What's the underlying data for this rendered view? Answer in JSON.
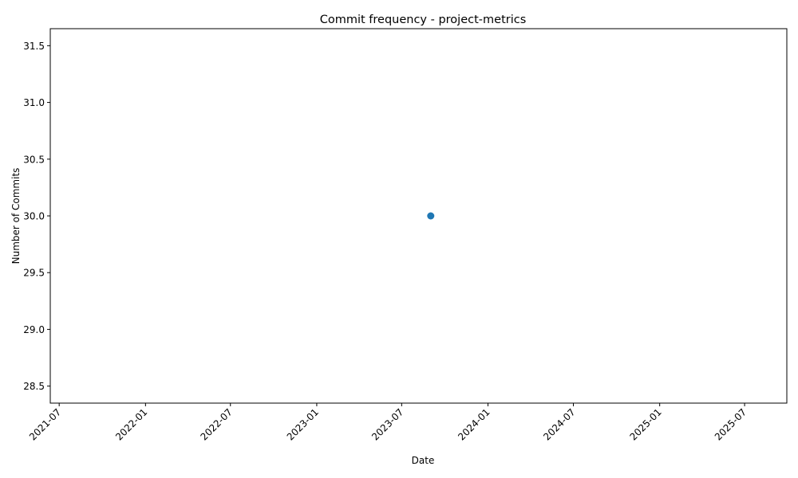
{
  "chart_data": {
    "type": "scatter",
    "title": "Commit frequency - project-metrics",
    "xlabel": "Date",
    "ylabel": "Number of Commits",
    "x_scale": "date",
    "xlim": [
      "2021-06-12",
      "2025-09-29"
    ],
    "ylim": [
      28.35,
      31.65
    ],
    "x_ticks": [
      "2021-07",
      "2022-01",
      "2022-07",
      "2023-01",
      "2023-07",
      "2024-01",
      "2024-07",
      "2025-01",
      "2025-07"
    ],
    "x_tick_dates": [
      "2021-07-01",
      "2022-01-01",
      "2022-07-01",
      "2023-01-01",
      "2023-07-01",
      "2024-01-01",
      "2024-07-01",
      "2025-01-01",
      "2025-07-01"
    ],
    "y_ticks": [
      "28.5",
      "29.0",
      "29.5",
      "30.0",
      "30.5",
      "31.0",
      "31.5"
    ],
    "y_tick_values": [
      28.5,
      29.0,
      29.5,
      30.0,
      30.5,
      31.0,
      31.5
    ],
    "x_tick_rotation": 45,
    "grid": false,
    "series": [
      {
        "color": "#1f77b4",
        "points": [
          {
            "x": "2023-09-01",
            "y": 30
          }
        ]
      }
    ]
  }
}
